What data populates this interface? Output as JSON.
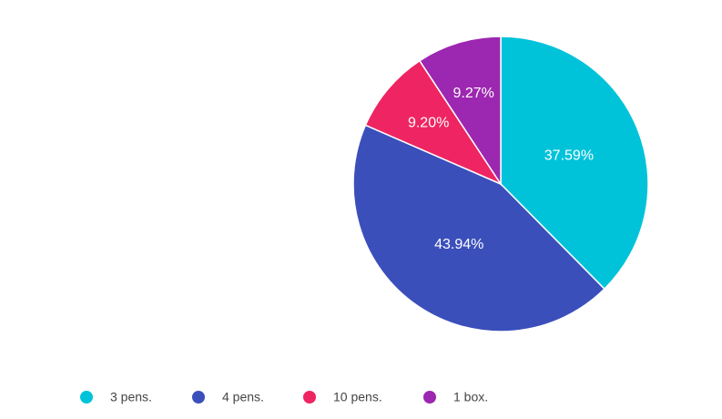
{
  "chart_data": {
    "type": "pie",
    "categories": [
      "3 pens.",
      "4 pens.",
      "10 pens.",
      "1 box."
    ],
    "values": [
      37.59,
      43.94,
      9.2,
      9.27
    ],
    "value_labels": [
      "37.59%",
      "43.94%",
      "9.20%",
      "9.27%"
    ],
    "colors": [
      "#00c3da",
      "#3b4fbb",
      "#ee2562",
      "#9c27b0"
    ],
    "legend": "bottom"
  }
}
